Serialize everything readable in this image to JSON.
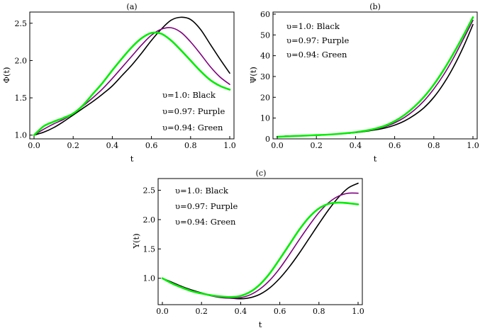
{
  "figure": {
    "title": ""
  },
  "chart_data": [
    {
      "type": "line",
      "panel_label": "(a)",
      "xlabel": "t",
      "ylabel": "Φ(t)",
      "xlim": [
        0,
        1
      ],
      "ylim": [
        0.95,
        2.65
      ],
      "xticks": [
        "0.0",
        "0.2",
        "0.4",
        "0.6",
        "0.8",
        "1.0"
      ],
      "yticks": [
        "1.0",
        "1.5",
        "2.0",
        "2.5"
      ],
      "x": [
        0,
        0.05,
        0.1,
        0.15,
        0.2,
        0.25,
        0.3,
        0.35,
        0.4,
        0.45,
        0.5,
        0.55,
        0.6,
        0.65,
        0.7,
        0.75,
        0.8,
        0.85,
        0.9,
        0.95,
        1.0
      ],
      "legend": [
        "υ=1.0: Black",
        "υ=0.97: Purple",
        "υ=0.94: Green"
      ],
      "series": [
        {
          "name": "υ=1.0",
          "color": "#000000",
          "values": [
            1.0,
            1.04,
            1.1,
            1.18,
            1.27,
            1.36,
            1.45,
            1.55,
            1.66,
            1.8,
            1.94,
            2.1,
            2.27,
            2.42,
            2.54,
            2.58,
            2.55,
            2.42,
            2.22,
            2.02,
            1.83
          ]
        },
        {
          "name": "υ=0.97",
          "color": "#800080",
          "values": [
            1.0,
            1.08,
            1.15,
            1.21,
            1.29,
            1.39,
            1.5,
            1.62,
            1.76,
            1.91,
            2.06,
            2.21,
            2.34,
            2.42,
            2.44,
            2.38,
            2.25,
            2.09,
            1.92,
            1.78,
            1.68
          ]
        },
        {
          "name": "υ=0.94",
          "color": "#00ee00",
          "values": [
            1.0,
            1.12,
            1.18,
            1.23,
            1.29,
            1.4,
            1.55,
            1.7,
            1.87,
            2.03,
            2.18,
            2.3,
            2.37,
            2.36,
            2.27,
            2.14,
            2.0,
            1.86,
            1.74,
            1.66,
            1.61
          ]
        }
      ]
    },
    {
      "type": "line",
      "panel_label": "(b)",
      "xlabel": "t",
      "ylabel": "Ψ(t)",
      "xlim": [
        0,
        1
      ],
      "ylim": [
        0,
        61
      ],
      "xticks": [
        "0.0",
        "0.2",
        "0.4",
        "0.6",
        "0.8",
        "1.0"
      ],
      "yticks": [
        "0",
        "10",
        "20",
        "30",
        "40",
        "50",
        "60"
      ],
      "x": [
        0,
        0.05,
        0.1,
        0.15,
        0.2,
        0.25,
        0.3,
        0.35,
        0.4,
        0.45,
        0.5,
        0.55,
        0.6,
        0.65,
        0.7,
        0.75,
        0.8,
        0.85,
        0.9,
        0.95,
        1.0
      ],
      "legend": [
        "υ=1.0: Black",
        "υ=0.97: Purple",
        "υ=0.94: Green"
      ],
      "series": [
        {
          "name": "υ=1.0",
          "color": "#000000",
          "values": [
            1.0,
            1.4,
            1.5,
            1.6,
            1.8,
            2.0,
            2.3,
            2.6,
            3.0,
            3.6,
            4.3,
            5.2,
            6.6,
            8.6,
            11.4,
            15.0,
            20.0,
            26.5,
            34.5,
            44.0,
            55.0
          ]
        },
        {
          "name": "υ=0.97",
          "color": "#800080",
          "values": [
            1.0,
            1.2,
            1.4,
            1.6,
            1.8,
            2.0,
            2.3,
            2.7,
            3.2,
            3.8,
            4.6,
            5.8,
            7.7,
            10.3,
            13.8,
            18.3,
            24.0,
            30.8,
            38.8,
            47.8,
            57.0
          ]
        },
        {
          "name": "υ=0.94",
          "color": "#00ee00",
          "values": [
            1.0,
            1.2,
            1.4,
            1.6,
            1.8,
            2.0,
            2.3,
            2.7,
            3.2,
            3.9,
            4.9,
            6.3,
            8.5,
            11.5,
            15.4,
            20.2,
            26.1,
            33.1,
            41.0,
            49.5,
            58.5
          ]
        }
      ]
    },
    {
      "type": "line",
      "panel_label": "(c)",
      "xlabel": "t",
      "ylabel": "Υ(t)",
      "xlim": [
        0,
        1
      ],
      "ylim": [
        0.55,
        2.7
      ],
      "xticks": [
        "0.0",
        "0.2",
        "0.4",
        "0.6",
        "0.8",
        "1.0"
      ],
      "yticks": [
        "1.0",
        "1.5",
        "2.0",
        "2.5"
      ],
      "x": [
        0,
        0.05,
        0.1,
        0.15,
        0.2,
        0.25,
        0.3,
        0.35,
        0.4,
        0.45,
        0.5,
        0.55,
        0.6,
        0.65,
        0.7,
        0.75,
        0.8,
        0.85,
        0.9,
        0.95,
        1.0
      ],
      "legend": [
        "υ=1.0:  Black",
        "υ=0.97: Purple",
        "υ=0.94: Green"
      ],
      "series": [
        {
          "name": "υ=1.0",
          "color": "#000000",
          "values": [
            1.0,
            0.93,
            0.86,
            0.8,
            0.75,
            0.71,
            0.68,
            0.66,
            0.65,
            0.67,
            0.73,
            0.84,
            1.0,
            1.2,
            1.43,
            1.68,
            1.93,
            2.17,
            2.38,
            2.54,
            2.62
          ]
        },
        {
          "name": "υ=0.97",
          "color": "#800080",
          "values": [
            1.0,
            0.92,
            0.85,
            0.79,
            0.74,
            0.7,
            0.67,
            0.66,
            0.67,
            0.72,
            0.82,
            0.97,
            1.17,
            1.41,
            1.66,
            1.9,
            2.12,
            2.29,
            2.4,
            2.45,
            2.45
          ]
        },
        {
          "name": "υ=0.94",
          "color": "#00ee00",
          "values": [
            1.0,
            0.91,
            0.84,
            0.78,
            0.74,
            0.71,
            0.69,
            0.68,
            0.7,
            0.77,
            0.9,
            1.09,
            1.33,
            1.58,
            1.83,
            2.04,
            2.19,
            2.27,
            2.29,
            2.28,
            2.26
          ]
        }
      ]
    }
  ]
}
